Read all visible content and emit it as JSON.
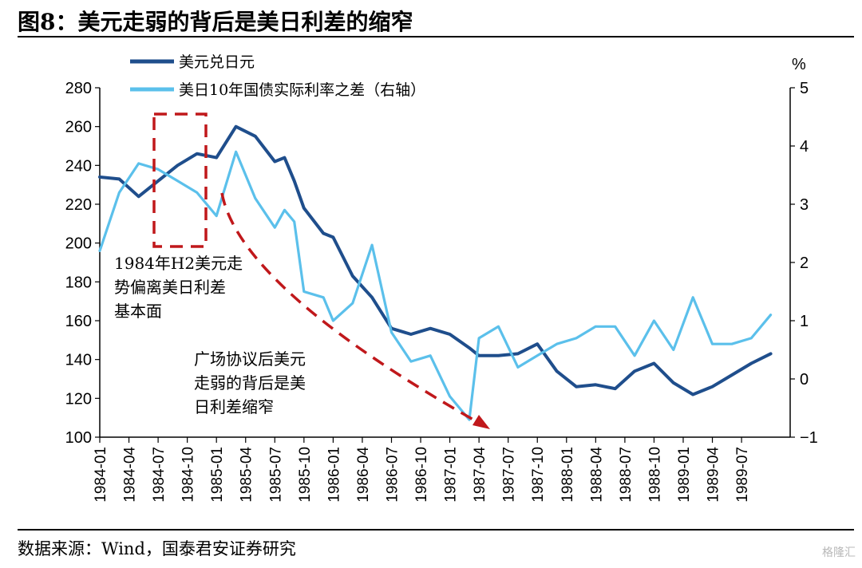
{
  "title": "图8：美元走弱的背后是美日利差的缩窄",
  "source": "数据来源：Wind，国泰君安证券研究",
  "watermark": "格隆汇",
  "chart_data": {
    "type": "line",
    "x": [
      "1984-01",
      "1984-03",
      "1984-05",
      "1984-07",
      "1984-09",
      "1984-11",
      "1985-01",
      "1985-03",
      "1985-05",
      "1985-07",
      "1985-08",
      "1985-09",
      "1985-10",
      "1985-12",
      "1986-01",
      "1986-03",
      "1986-05",
      "1986-07",
      "1986-09",
      "1986-11",
      "1987-01",
      "1987-03",
      "1987-04",
      "1987-06",
      "1987-08",
      "1987-10",
      "1987-12",
      "1988-02",
      "1988-04",
      "1988-06",
      "1988-08",
      "1988-10",
      "1988-12",
      "1989-02",
      "1989-04",
      "1989-06",
      "1989-08",
      "1989-10"
    ],
    "series": [
      {
        "name": "美元兑日元",
        "axis": "left",
        "color": "#1f4e8c",
        "values": [
          234,
          233,
          224,
          232,
          240,
          246,
          244,
          260,
          255,
          242,
          244,
          232,
          218,
          205,
          203,
          183,
          172,
          156,
          153,
          156,
          153,
          146,
          142,
          142,
          143,
          148,
          134,
          126,
          127,
          125,
          134,
          138,
          128,
          122,
          126,
          132,
          138,
          143
        ]
      },
      {
        "name": "美日10年国债实际利率之差（右轴）",
        "axis": "right",
        "color": "#5bc0eb",
        "values": [
          2.2,
          3.2,
          3.7,
          3.6,
          3.4,
          3.2,
          2.8,
          3.9,
          3.1,
          2.6,
          2.9,
          2.7,
          1.5,
          1.4,
          1.0,
          1.3,
          2.3,
          0.8,
          0.3,
          0.4,
          -0.3,
          -0.7,
          0.7,
          0.9,
          0.2,
          0.4,
          0.6,
          0.7,
          0.9,
          0.9,
          0.4,
          1.0,
          0.5,
          1.4,
          0.6,
          0.6,
          0.7,
          1.1
        ]
      }
    ],
    "y_left": {
      "ylim": [
        100,
        280
      ],
      "ticks": [
        "100",
        "120",
        "140",
        "160",
        "180",
        "200",
        "220",
        "240",
        "260",
        "280"
      ]
    },
    "y_right": {
      "unit": "%",
      "ylim": [
        -1,
        5
      ],
      "ticks": [
        "−1",
        "0",
        "1",
        "2",
        "3",
        "4",
        "5"
      ]
    },
    "x_ticks": [
      "1984-01",
      "1984-04",
      "1984-07",
      "1984-10",
      "1985-01",
      "1985-04",
      "1985-07",
      "1985-10",
      "1986-01",
      "1986-04",
      "1986-07",
      "1986-10",
      "1987-01",
      "1987-04",
      "1987-07",
      "1987-10",
      "1988-01",
      "1988-04",
      "1988-07",
      "1988-10",
      "1989-01",
      "1989-04",
      "1989-07"
    ],
    "legend_position": "top-left",
    "annotations": [
      {
        "lines": [
          "1984年H2美元走",
          "势偏离美日利差",
          "基本面"
        ]
      },
      {
        "lines": [
          "广场协议后美元",
          "走弱的背后是美",
          "日利差缩窄"
        ]
      }
    ],
    "annotation_color": "#c0181b"
  }
}
